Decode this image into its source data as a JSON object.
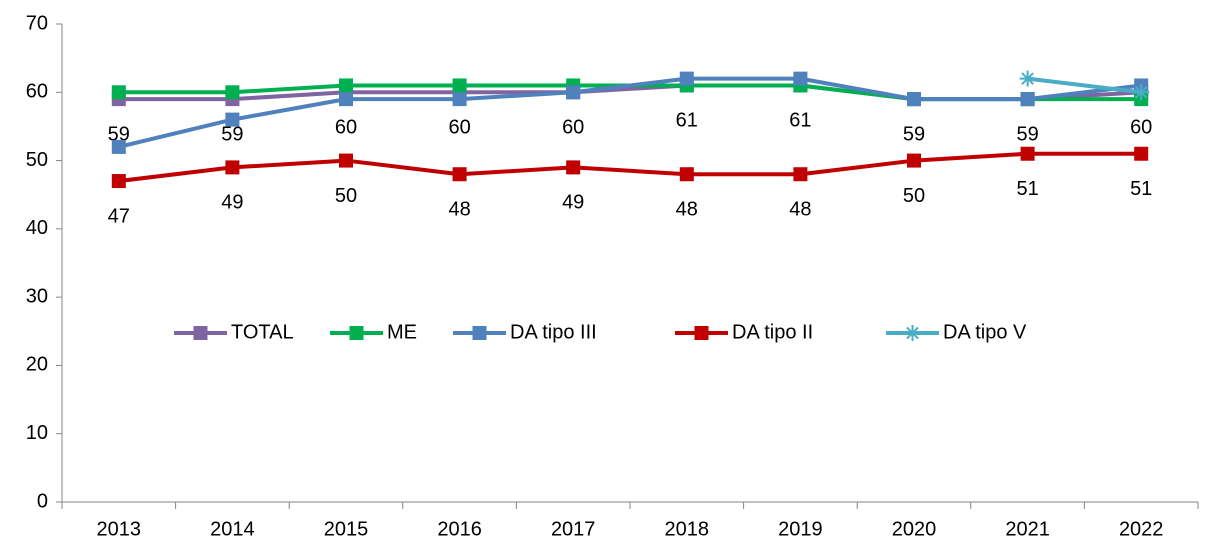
{
  "chart_data": {
    "type": "line",
    "categories": [
      "2013",
      "2014",
      "2015",
      "2016",
      "2017",
      "2018",
      "2019",
      "2020",
      "2021",
      "2022"
    ],
    "series": [
      {
        "name": "TOTAL",
        "color": "#8064a2",
        "marker": "square",
        "data_labels": true,
        "values": [
          59,
          59,
          60,
          60,
          60,
          61,
          61,
          59,
          59,
          60
        ]
      },
      {
        "name": "ME",
        "color": "#00b050",
        "marker": "square",
        "data_labels": false,
        "values": [
          60,
          60,
          61,
          61,
          61,
          61,
          61,
          59,
          59,
          59
        ]
      },
      {
        "name": "DA tipo III",
        "color": "#4f81bd",
        "marker": "square",
        "data_labels": false,
        "values": [
          52,
          56,
          59,
          59,
          60,
          62,
          62,
          59,
          59,
          61
        ]
      },
      {
        "name": "DA tipo II",
        "color": "#c00000",
        "marker": "square",
        "data_labels": true,
        "values": [
          47,
          49,
          50,
          48,
          49,
          48,
          48,
          50,
          51,
          51
        ]
      },
      {
        "name": "DA tipo V",
        "color": "#4bacc6",
        "marker": "star",
        "data_labels": false,
        "values": [
          null,
          null,
          null,
          null,
          null,
          null,
          null,
          null,
          62,
          60
        ]
      }
    ],
    "ylim": [
      0,
      70
    ],
    "yticks": [
      0,
      10,
      20,
      30,
      40,
      50,
      60,
      70
    ],
    "grid": false,
    "legend": "center"
  }
}
